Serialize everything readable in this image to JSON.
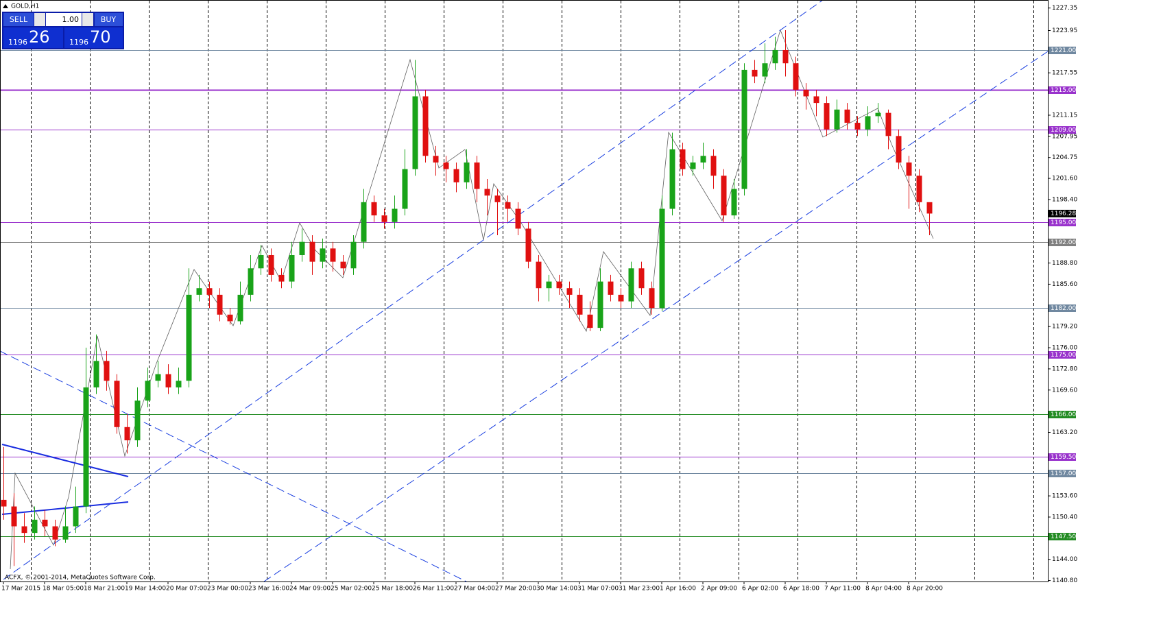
{
  "chart_data": {
    "type": "candlestick",
    "title": "GOLD,H1",
    "footer": "ACFX, © 2001-2014, MetaQuotes Software Corp.",
    "categories": [
      "17 Mar 2015",
      null,
      null,
      null,
      "18 Mar 05:00",
      null,
      null,
      null,
      "18 Mar 21:00",
      null,
      null,
      null,
      "19 Mar 14:00",
      null,
      null,
      null,
      "20 Mar 07:00",
      null,
      null,
      null,
      "23 Mar 00:00",
      null,
      null,
      null,
      "23 Mar 16:00",
      null,
      null,
      null,
      "24 Mar 09:00",
      null,
      null,
      null,
      "25 Mar 02:00",
      null,
      null,
      null,
      "25 Mar 18:00",
      null,
      null,
      null,
      "26 Mar 11:00",
      null,
      null,
      null,
      "27 Mar 04:00",
      null,
      null,
      null,
      "27 Mar 20:00",
      null,
      null,
      null,
      "30 Mar 14:00",
      null,
      null,
      null,
      "31 Mar 07:00",
      null,
      null,
      null,
      "31 Mar 23:00",
      null,
      null,
      null,
      "1 Apr 16:00",
      null,
      null,
      null,
      "2 Apr 09:00",
      null,
      null,
      null,
      "6 Apr 02:00",
      null,
      null,
      null,
      "6 Apr 18:00",
      null,
      null,
      null,
      "7 Apr 11:00",
      null,
      null,
      null,
      "8 Apr 04:00",
      null,
      null,
      null,
      "8 Apr 20:00",
      null,
      null
    ],
    "open": [
      1153,
      1152,
      1149,
      1148,
      1150,
      1149,
      1147,
      1149,
      1152,
      1170,
      1174,
      1171,
      1164,
      1162,
      1168,
      1171,
      1172,
      1170,
      1171,
      1184,
      1185,
      1184,
      1181,
      1180,
      1184,
      1188,
      1190,
      1187,
      1186,
      1190,
      1192,
      1189,
      1191,
      1189,
      1188,
      1192,
      1198,
      1196,
      1195,
      1197,
      1203,
      1214,
      1205,
      1204,
      1203,
      1201,
      1204,
      1200,
      1199,
      1198,
      1197,
      1194,
      1189,
      1185,
      1186,
      1185,
      1184,
      1181,
      1179,
      1186,
      1184,
      1183,
      1188,
      1185,
      1182,
      1197,
      1206,
      1203,
      1204,
      1205,
      1202,
      1196,
      1200,
      1218,
      1217,
      1219,
      1221,
      1219,
      1215,
      1214,
      1213,
      1209,
      1212,
      1210,
      1209,
      1211,
      1211.5,
      1208,
      1204,
      1202,
      1198
    ],
    "high": [
      1161,
      1154,
      1151,
      1152,
      1151.5,
      1150,
      1152,
      1155,
      1176,
      1178,
      1175.5,
      1172,
      1166,
      1170,
      1173,
      1174,
      1173.5,
      1173,
      1188,
      1187,
      1186,
      1185,
      1182,
      1186,
      1190,
      1191.5,
      1191,
      1188,
      1192,
      1194,
      1193,
      1192.5,
      1192,
      1190,
      1193,
      1200,
      1199,
      1197,
      1199,
      1206,
      1219.5,
      1215,
      1206.5,
      1205,
      1204,
      1206,
      1205,
      1201.5,
      1200,
      1199,
      1198,
      1195,
      1190,
      1187,
      1187,
      1186,
      1185,
      1183,
      1188,
      1187,
      1185,
      1189,
      1189,
      1186,
      1199,
      1208.5,
      1207,
      1205,
      1207,
      1206,
      1203,
      1201.5,
      1219,
      1219.5,
      1222,
      1223,
      1224,
      1220,
      1216,
      1215,
      1214,
      1213.5,
      1213,
      1211,
      1212.5,
      1213,
      1212,
      1209,
      1205,
      1203,
      1197.5
    ],
    "low": [
      1150,
      1143,
      1146.5,
      1147,
      1147.5,
      1146,
      1146.5,
      1148,
      1151,
      1169,
      1169.5,
      1163,
      1160,
      1161,
      1167,
      1170,
      1169,
      1169,
      1170,
      1183,
      1182,
      1180,
      1179.5,
      1179.5,
      1183,
      1187,
      1186,
      1185,
      1185,
      1189,
      1187,
      1188,
      1187.5,
      1187,
      1187,
      1191,
      1195,
      1194,
      1194,
      1196,
      1202,
      1204,
      1202,
      1201,
      1199.5,
      1200,
      1198,
      1196,
      1193,
      1195,
      1193,
      1188,
      1183,
      1183,
      1184,
      1182,
      1180,
      1178.5,
      1178.5,
      1183,
      1182,
      1182,
      1184,
      1181,
      1181.5,
      1196,
      1202,
      1202,
      1203,
      1200,
      1195,
      1195.5,
      1199,
      1216,
      1216,
      1218,
      1217,
      1214,
      1212,
      1211,
      1208,
      1208.5,
      1209,
      1208,
      1208,
      1210,
      1206,
      1203,
      1197,
      1196.5,
      1193
    ],
    "close": [
      1152,
      1149,
      1148,
      1150,
      1149,
      1147,
      1149,
      1152,
      1170,
      1174,
      1171,
      1164,
      1162,
      1168,
      1171,
      1172,
      1170,
      1171,
      1184,
      1185,
      1184,
      1181,
      1180,
      1184,
      1188,
      1190,
      1187,
      1186,
      1190,
      1192,
      1189,
      1191,
      1189,
      1188,
      1192,
      1198,
      1196,
      1195,
      1197,
      1203,
      1214,
      1205,
      1204,
      1203,
      1201,
      1204,
      1200,
      1199,
      1198,
      1197,
      1194,
      1189,
      1185,
      1186,
      1185,
      1184,
      1181,
      1179,
      1186,
      1184,
      1183,
      1188,
      1185,
      1182,
      1197,
      1206,
      1203,
      1204,
      1205,
      1202,
      1196,
      1200,
      1218,
      1217,
      1219,
      1221,
      1219,
      1215,
      1214,
      1213,
      1209,
      1212,
      1210,
      1209,
      1211,
      1211.5,
      1208,
      1204,
      1202,
      1198,
      1196.28
    ],
    "up_color": "#19a319",
    "down_color": "#e01010",
    "ylim": [
      1140.8,
      1227.35
    ],
    "yticks": [
      1227.35,
      1223.95,
      1217.55,
      1211.15,
      1207.95,
      1204.75,
      {
        "value": 1201.6,
        "label": "1201.60"
      },
      {
        "value": 1198.4,
        "label": "1198.40"
      },
      {
        "value": 1188.8,
        "label": "1188.80"
      },
      {
        "value": 1185.6,
        "label": "1185.60"
      },
      {
        "value": 1179.2,
        "label": "1179.20"
      },
      {
        "value": 1176,
        "label": "1176.00"
      },
      {
        "value": 1172.8,
        "label": "1172.80"
      },
      {
        "value": 1169.6,
        "label": "1169.60"
      },
      {
        "value": 1163.2,
        "label": "1163.20"
      },
      {
        "value": 1153.6,
        "label": "1153.60"
      },
      {
        "value": 1150.4,
        "label": "1150.40"
      },
      {
        "value": 1144,
        "label": "1144.00"
      },
      {
        "value": 1140.8,
        "label": "1140.80"
      }
    ],
    "levels": [
      {
        "value": 1221,
        "label": "1221.00",
        "color": "#7088a0"
      },
      {
        "value": 1215,
        "label": "1215.00",
        "color": "#9932cc"
      },
      {
        "value": 1209,
        "label": "1209.00",
        "color": "#9932cc"
      },
      {
        "value": 1195,
        "label": "1195.00",
        "color": "#9932cc"
      },
      {
        "value": 1192,
        "label": "1192.00",
        "color": "#808080"
      },
      {
        "value": 1182,
        "label": "1182.00",
        "color": "#7088a0"
      },
      {
        "value": 1175,
        "label": "1175.00",
        "color": "#9932cc"
      },
      {
        "value": 1166,
        "label": "1166.00",
        "color": "#228b22"
      },
      {
        "value": 1159.5,
        "label": "1159.50",
        "color": "#9932cc"
      },
      {
        "value": 1157,
        "label": "1157.00",
        "color": "#7088a0"
      },
      {
        "value": 1147.5,
        "label": "1147.50",
        "color": "#228b22"
      }
    ],
    "current_price": 1196.28
  },
  "trade_panel": {
    "sell": "SELL",
    "buy": "BUY",
    "lots": "1.00",
    "bid_head": "1196",
    "bid_tail": "26",
    "ask_head": "1196",
    "ask_tail": "70"
  }
}
